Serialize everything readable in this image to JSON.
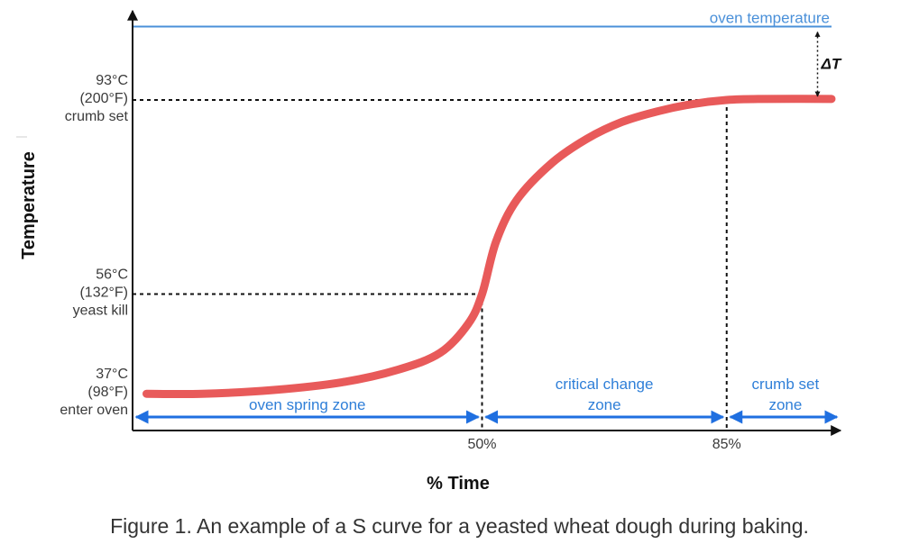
{
  "chart_data": {
    "type": "line",
    "xlabel": "% Time",
    "ylabel": "Temperature",
    "x_unit": "%",
    "y_unit": "°C",
    "xlim": [
      0,
      100
    ],
    "ylim": [
      30,
      110
    ],
    "series": [
      {
        "name": "",
        "color": "#e85a5a",
        "x": [
          2,
          10,
          20,
          30,
          38,
          44,
          48,
          50,
          52,
          55,
          60,
          65,
          70,
          75,
          80,
          85,
          90,
          100
        ],
        "y": [
          37,
          37,
          37.7,
          39.2,
          41.6,
          44.8,
          50.3,
          56,
          66,
          74,
          81,
          85.6,
          88.8,
          90.8,
          92.2,
          93,
          93.2,
          93.2
        ]
      }
    ],
    "reference_lines": [
      {
        "label": "oven temperature",
        "axis": "y",
        "value": 107,
        "color": "#4a90d9"
      }
    ],
    "y_markers": [
      {
        "value": 93,
        "lines": [
          "93°C",
          "(200°F)",
          "crumb set"
        ],
        "guide_to_x": 85
      },
      {
        "value": 56,
        "lines": [
          "56°C",
          "(132°F)",
          "yeast kill"
        ],
        "guide_to_x": 50
      },
      {
        "value": 37,
        "lines": [
          "37°C",
          "(98°F)",
          "enter oven"
        ]
      }
    ],
    "x_ticks": [
      {
        "value": 50,
        "label": "50%"
      },
      {
        "value": 85,
        "label": "85%"
      }
    ],
    "zones": [
      {
        "from": 0,
        "to": 50,
        "lines": [
          "oven spring zone"
        ]
      },
      {
        "from": 50,
        "to": 85,
        "lines": [
          "critical change",
          "zone"
        ]
      },
      {
        "from": 85,
        "to": 100,
        "lines": [
          "crumb set",
          "zone"
        ]
      }
    ],
    "delta_annotation": {
      "label": "ΔT",
      "x": 98,
      "from_y": 93,
      "to_y": 107
    }
  },
  "figure": {
    "caption": "Figure 1. An example of a S curve for a yeasted wheat dough during baking."
  }
}
